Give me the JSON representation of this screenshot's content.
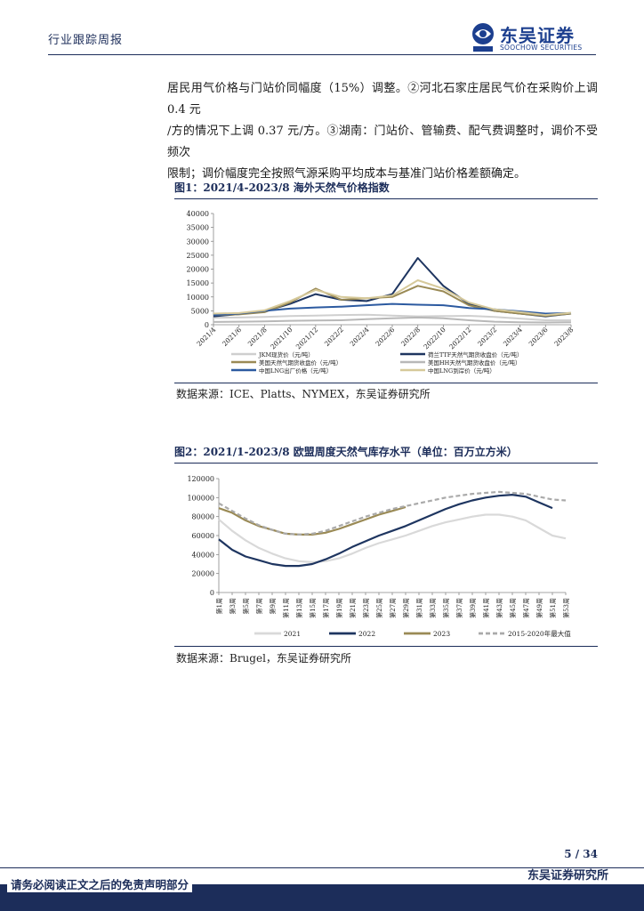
{
  "header": {
    "tag": "行业跟踪周报",
    "logo_cn": "东吴证券",
    "logo_en": "SOOCHOW SECURITIES"
  },
  "body_text": [
    "居民用气价格与门站价同幅度（15%）调整。②河北石家庄居民气价在采购价上调 0.4 元",
    "/方的情况下上调 0.37 元/方。③湖南：门站价、管输费、配气费调整时，调价不受频次",
    "限制；调价幅度完全按照气源采购平均成本与基准门站价格差额确定。"
  ],
  "figure1": {
    "title": "图1：2021/4-2023/8 海外天然气价格指数",
    "source": "数据来源：ICE、Platts、NYMEX，东吴证券研究所"
  },
  "figure2": {
    "title": "图2：2021/1-2023/8 欧盟周度天然气库存水平（单位：百万立方米）",
    "source": "数据来源：Brugel，东吴证券研究所"
  },
  "footer": {
    "page": "5 / 34",
    "disclaimer": "请务必阅读正文之后的免责声明部分",
    "org": "东吴证券研究所"
  },
  "colors": {
    "navy": "#1c2d5a",
    "brand_blue": "#1c3f8f"
  },
  "chart_data": [
    {
      "type": "line",
      "x": [
        "2021/4",
        "2021/6",
        "2021/8",
        "2021/10",
        "2021/12",
        "2022/2",
        "2022/4",
        "2022/6",
        "2022/8",
        "2022/10",
        "2022/12",
        "2023/2",
        "2023/4",
        "2023/6",
        "2023/8"
      ],
      "ylim": [
        0,
        40000
      ],
      "yticks": [
        "0",
        "5000",
        "10000",
        "15000",
        "20000",
        "25000",
        "30000",
        "35000",
        "40000"
      ],
      "series": [
        {
          "name": "JKM现货价（元/吨）",
          "color": "#cfcfcf",
          "values": [
            2500,
            2600,
            2800,
            3100,
            3300,
            3500,
            3600,
            3300,
            3000,
            3100,
            3200,
            2800,
            2200,
            1600,
            1600
          ]
        },
        {
          "name": "荷兰TTF天然气期货收盘价（元/吨）",
          "color": "#1e3560",
          "values": [
            3000,
            3800,
            4800,
            7500,
            11000,
            9000,
            8500,
            11000,
            24000,
            14000,
            7500,
            5000,
            4000,
            3000,
            4000
          ]
        },
        {
          "name": "美国天然气期货收盘价（元/吨）",
          "color": "#9a8a55",
          "values": [
            3500,
            3700,
            4500,
            8000,
            13000,
            9000,
            9500,
            10000,
            14000,
            12000,
            7000,
            5000,
            4000,
            3200,
            4000
          ]
        },
        {
          "name": "美国HH天然气期货收盘价（元/吨）",
          "color": "#b8b8b8",
          "values": [
            1000,
            1100,
            1200,
            1400,
            1500,
            1600,
            2000,
            2300,
            2600,
            2300,
            1600,
            1100,
            900,
            800,
            900
          ]
        },
        {
          "name": "中国LNG出厂价格（元/吨）",
          "color": "#2c5aa0",
          "values": [
            3500,
            4000,
            5000,
            5800,
            6200,
            6500,
            7000,
            7500,
            7200,
            7000,
            6000,
            5500,
            4800,
            4000,
            4200
          ]
        },
        {
          "name": "中国LNG到岸价（元/吨）",
          "color": "#d6c99a",
          "values": [
            4000,
            4200,
            5200,
            8500,
            12500,
            10000,
            9500,
            10500,
            16000,
            13000,
            8000,
            5500,
            4500,
            3500,
            4300
          ]
        }
      ]
    },
    {
      "type": "line",
      "x": [
        "第1周",
        "第3周",
        "第5周",
        "第7周",
        "第9周",
        "第11周",
        "第13周",
        "第15周",
        "第17周",
        "第19周",
        "第21周",
        "第23周",
        "第25周",
        "第27周",
        "第29周",
        "第31周",
        "第33周",
        "第35周",
        "第37周",
        "第39周",
        "第41周",
        "第43周",
        "第45周",
        "第47周",
        "第49周",
        "第51周",
        "第53周"
      ],
      "ylim": [
        0,
        120000
      ],
      "yticks": [
        "0",
        "20000",
        "40000",
        "60000",
        "80000",
        "100000",
        "120000"
      ],
      "series": [
        {
          "name": "2021",
          "color": "#d9d9d9",
          "dash": "solid",
          "values": [
            77000,
            65000,
            55000,
            47000,
            41000,
            36000,
            33000,
            32000,
            33000,
            36000,
            41000,
            47000,
            52000,
            56000,
            60000,
            65000,
            70000,
            74000,
            77000,
            80000,
            82000,
            82000,
            80000,
            76000,
            68000,
            60000,
            57000
          ]
        },
        {
          "name": "2022",
          "color": "#1e3560",
          "dash": "solid",
          "values": [
            56000,
            45000,
            38000,
            34000,
            30000,
            28000,
            28000,
            30000,
            35000,
            41000,
            48000,
            54000,
            60000,
            65000,
            70000,
            76000,
            82000,
            88000,
            93000,
            97000,
            100000,
            102000,
            103000,
            101000,
            95000,
            89000,
            null
          ]
        },
        {
          "name": "2023",
          "color": "#9a8a55",
          "dash": "solid",
          "values": [
            89000,
            84000,
            76000,
            70000,
            66000,
            62000,
            61000,
            61000,
            63000,
            67000,
            72000,
            77000,
            82000,
            86000,
            90000,
            null,
            null,
            null,
            null,
            null,
            null,
            null,
            null,
            null,
            null,
            null,
            null
          ]
        },
        {
          "name": "2015-2020年最大值",
          "color": "#aaaaaa",
          "dash": "dashed",
          "values": [
            94000,
            86000,
            78000,
            71000,
            66000,
            62000,
            61000,
            62000,
            65000,
            70000,
            75000,
            80000,
            84000,
            88000,
            91000,
            94000,
            97000,
            100000,
            102000,
            104000,
            105000,
            106000,
            105000,
            104000,
            101000,
            98000,
            97000
          ]
        }
      ]
    }
  ]
}
